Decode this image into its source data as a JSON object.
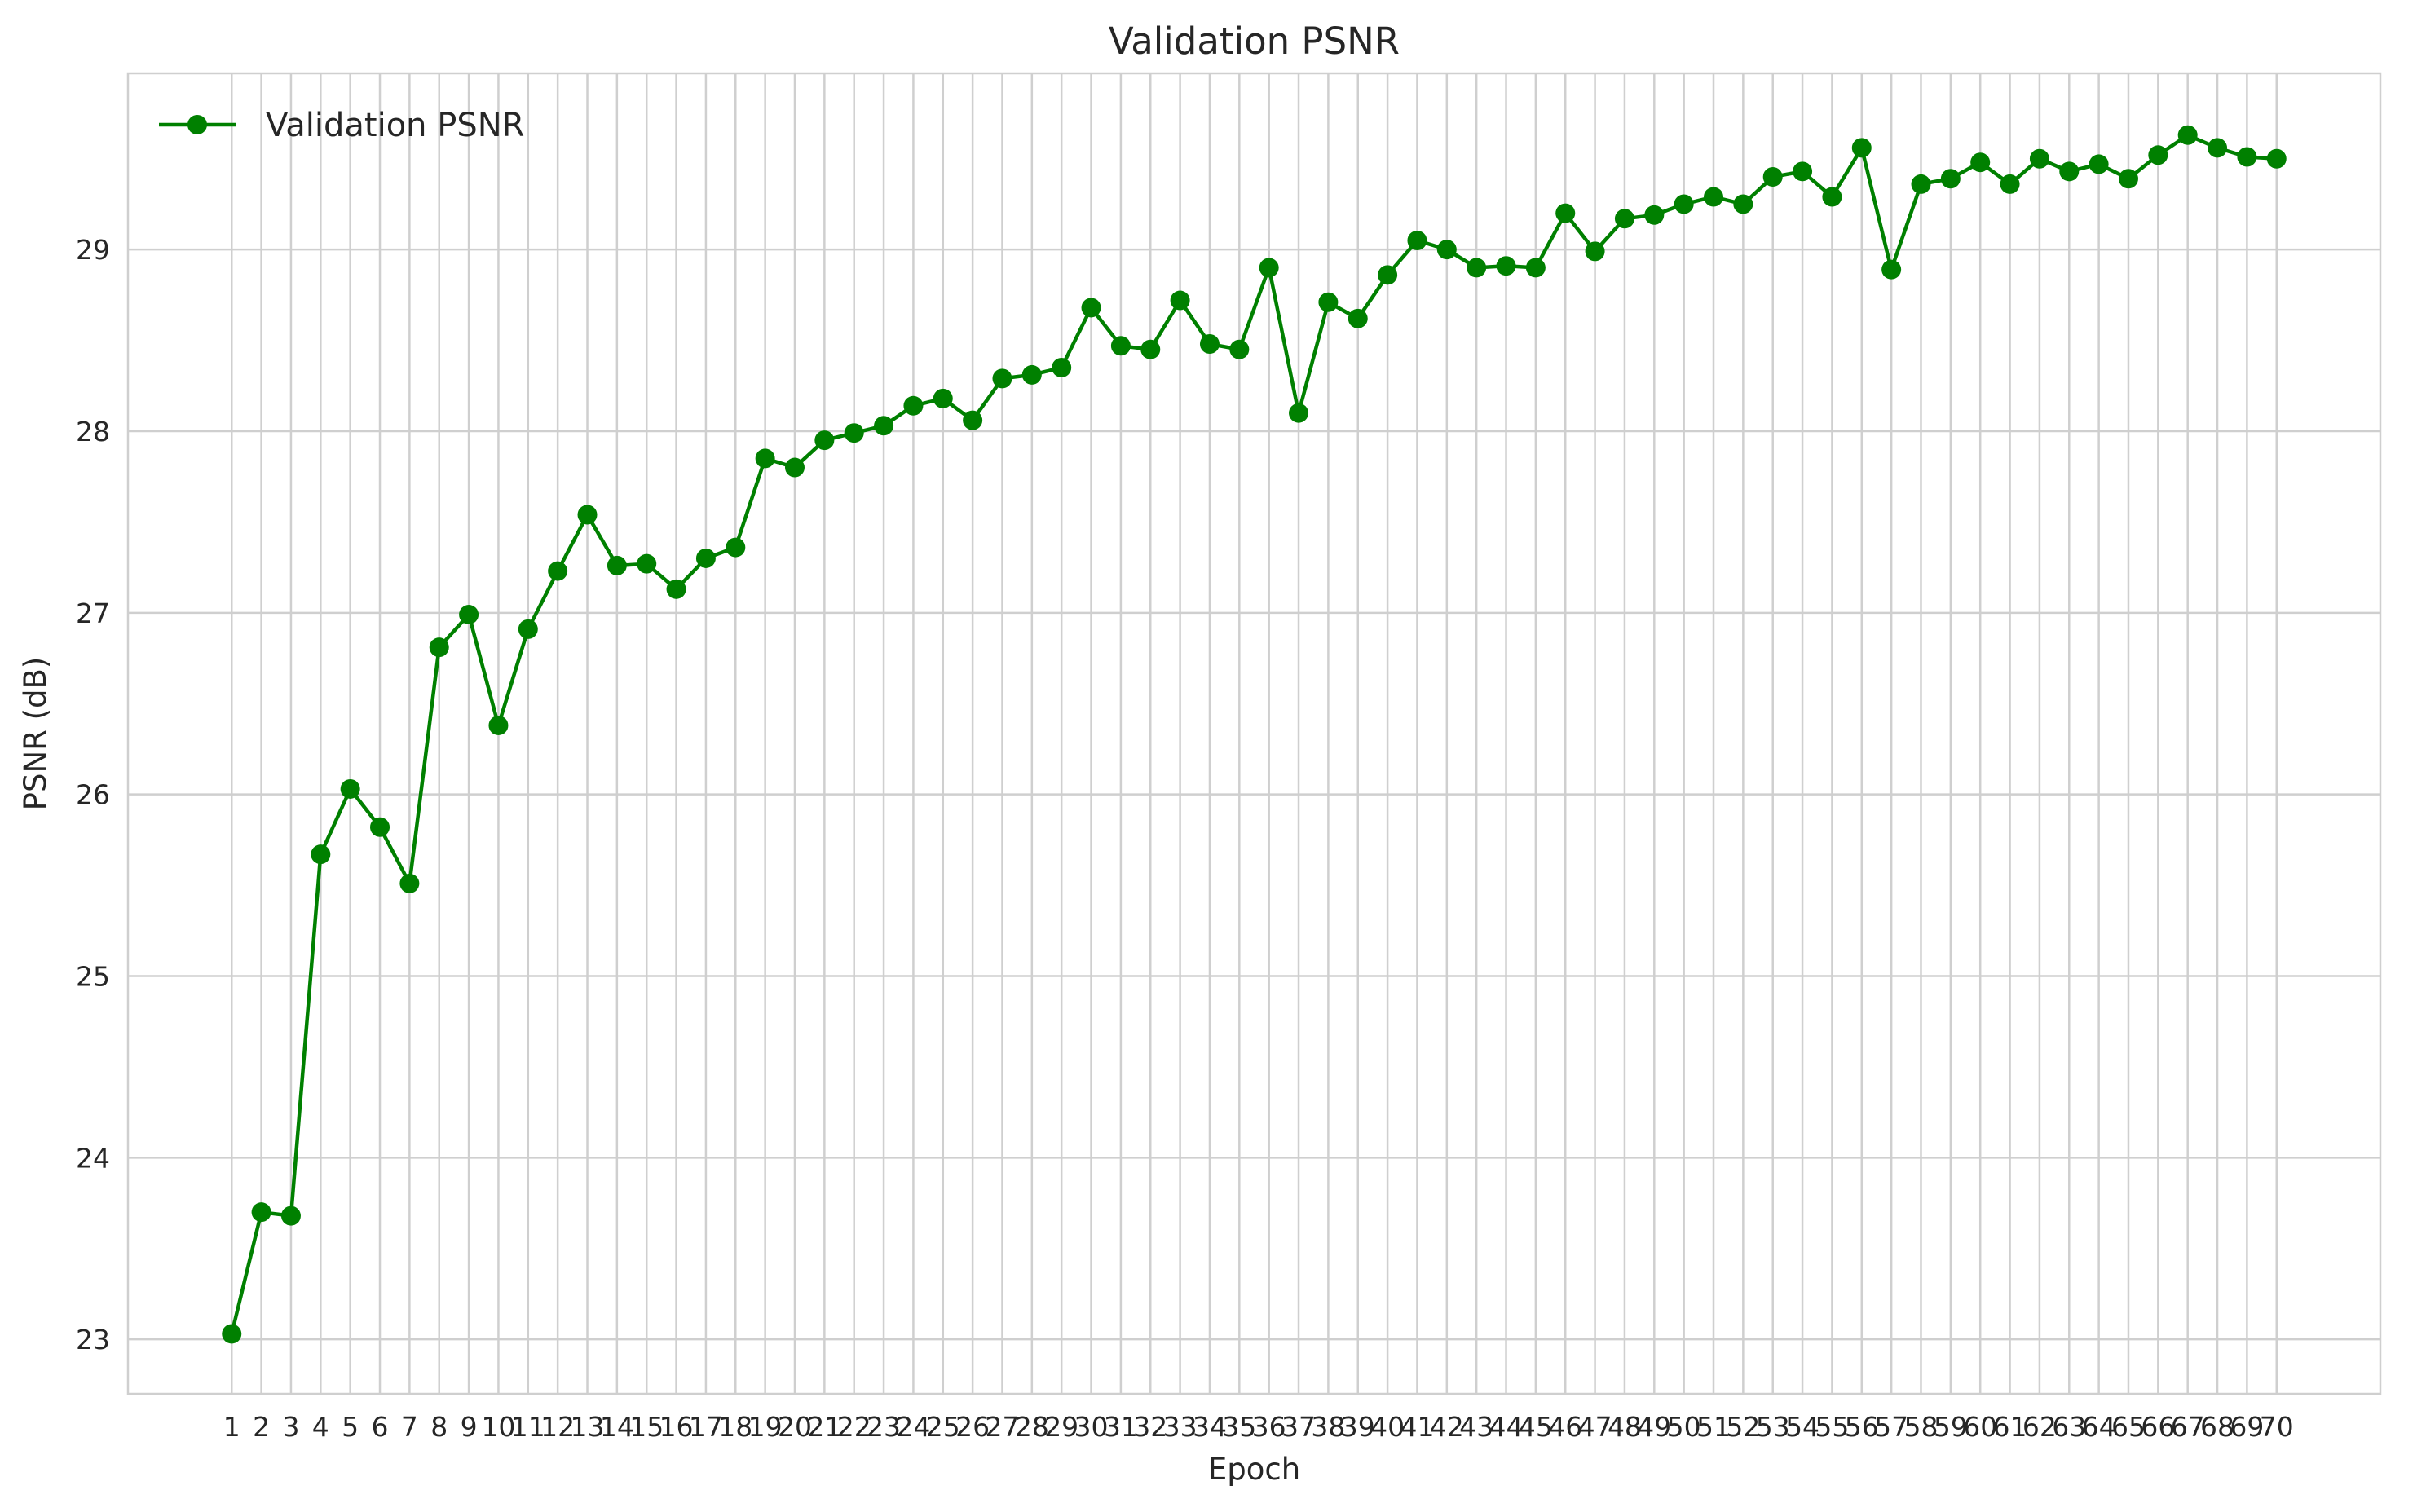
{
  "chart_data": {
    "type": "line",
    "title": "Validation PSNR",
    "xlabel": "Epoch",
    "ylabel": "PSNR (dB)",
    "xlim": [
      -2.5,
      73.5
    ],
    "ylim": [
      22.7,
      29.97
    ],
    "yticks": [
      23,
      24,
      25,
      26,
      27,
      28,
      29
    ],
    "grid": true,
    "legend_position": "top-left",
    "x": [
      1,
      2,
      3,
      4,
      5,
      6,
      7,
      8,
      9,
      10,
      11,
      12,
      13,
      14,
      15,
      16,
      17,
      18,
      19,
      20,
      21,
      22,
      23,
      24,
      25,
      26,
      27,
      28,
      29,
      30,
      31,
      32,
      33,
      34,
      35,
      36,
      37,
      38,
      39,
      40,
      41,
      42,
      43,
      44,
      45,
      46,
      47,
      48,
      49,
      50,
      51,
      52,
      53,
      54,
      55,
      56,
      57,
      58,
      59,
      60,
      61,
      62,
      63,
      64,
      65,
      66,
      67,
      68,
      69,
      70
    ],
    "series": [
      {
        "name": "Validation PSNR",
        "color": "#008000",
        "marker": "circle",
        "values": [
          23.03,
          23.7,
          23.68,
          25.67,
          26.03,
          25.82,
          25.51,
          26.81,
          26.99,
          26.38,
          26.91,
          27.23,
          27.54,
          27.26,
          27.27,
          27.13,
          27.3,
          27.36,
          27.85,
          27.8,
          27.95,
          27.99,
          28.03,
          28.14,
          28.18,
          28.06,
          28.29,
          28.31,
          28.35,
          28.68,
          28.47,
          28.45,
          28.72,
          28.48,
          28.45,
          28.9,
          28.1,
          28.71,
          28.62,
          28.86,
          29.05,
          29.0,
          28.9,
          28.91,
          28.9,
          29.2,
          28.99,
          29.17,
          29.19,
          29.25,
          29.29,
          29.25,
          29.4,
          29.43,
          29.29,
          29.56,
          28.89,
          29.36,
          29.39,
          29.48,
          29.36,
          29.5,
          29.43,
          29.47,
          29.39,
          29.52,
          29.63,
          29.56,
          29.51,
          29.5
        ]
      }
    ]
  }
}
